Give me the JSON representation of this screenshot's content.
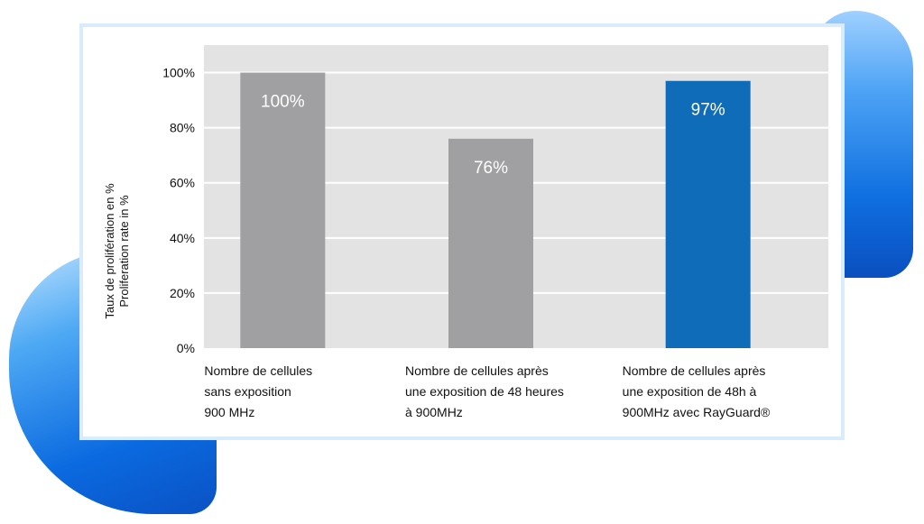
{
  "chart_data": {
    "type": "bar",
    "categories": [
      [
        "Nombre de cellules",
        "sans exposition",
        "900 MHz"
      ],
      [
        "Nombre de cellules après",
        "une exposition de 48 heures",
        "à 900MHz"
      ],
      [
        "Nombre de cellules après",
        "une exposition de 48h à",
        "900MHz avec RayGuard®"
      ]
    ],
    "values": [
      100,
      76,
      97
    ],
    "value_labels": [
      "100%",
      "76%",
      "97%"
    ],
    "bar_colors": [
      "#a0a0a2",
      "#a0a0a2",
      "#0f6cb8"
    ],
    "ylabel": [
      "Taux de prolifération en %",
      "Proliferation rate in %"
    ],
    "yticks": [
      0,
      20,
      40,
      60,
      80,
      100
    ],
    "ytick_labels": [
      "0%",
      "20%",
      "40%",
      "60%",
      "80%",
      "100%"
    ],
    "ylim": [
      0,
      110
    ],
    "grid": true,
    "plot_background": "#e3e3e3",
    "grid_color": "#ffffff"
  }
}
